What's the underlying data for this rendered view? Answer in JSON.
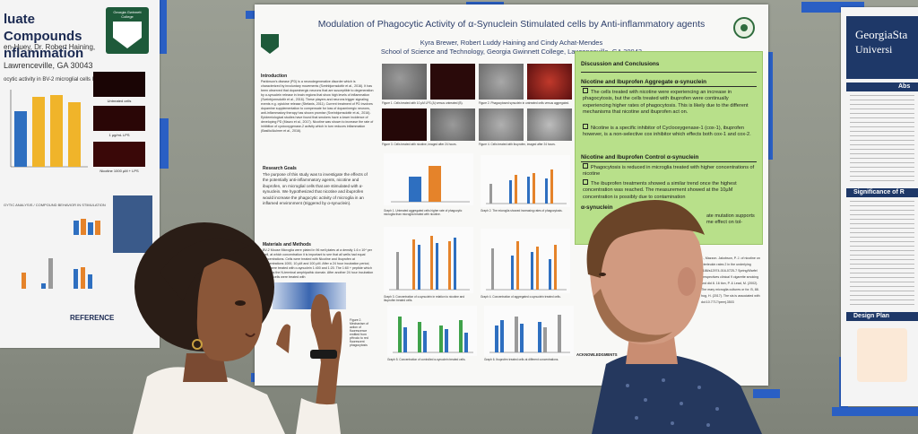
{
  "left_poster": {
    "title": "luate Compounds nflammation",
    "authors": "en-Huey, Dr. Robert Haining,",
    "location": "Lawrenceville, GA 30043",
    "crest_text": "Georgia Gwinnett College",
    "chart_title": "ocytic activity in BV-2 microglial cells line",
    "micro_labels": [
      "Untreated cells",
      "1 µg/mL LPS",
      "Nicotine 1000 µM + LPS"
    ],
    "bottom_title": "GYTIC ANALYSIS / COMPOUND BEHAVIOR IN STIMULATION",
    "references_heading": "REFERENCE"
  },
  "main_poster": {
    "title": "Modulation of Phagocytic Activity of α-Synuclein Stimulated cells by Anti-inflammatory agents",
    "authors": "Kyra Brewer, Robert Luddy Haining and Cindy Achat-Mendes",
    "school": "School of Science and Technology, Georgia Gwinnett College, Lawrenceville, GA 30043",
    "intro_heading": "Introduction",
    "intro_text": "Parkinson's disease (PD) is a neurodegenerative disorder which is characterized by involuntary movements (Sveinbjornsdottir et al., 2016). It has been observed that dopaminergic neurons that are susceptible to degeneration by α-synuclein release in brain regions that show high levels of inflammation (Sveinbjornsdottir et al., 2016). These players and neurons trigger signaling events e.g. cytokine release (Stefanis, 2011). Current treatment of PD involves dopamine supplementation to compensate for loss of dopaminergic neurons, anti-inflammatory therapy has shown promise (Sveinbjornsdottir et al., 2016). Epidemiological studies have found that smokers have a lower incidence of developing PD (Mauro et al., 2017). Nicotine was shown to increase the rate of inhibition of cyclooxygenase-2 activity which in turn reduces inflammation (Basilio/Aulmer et al., 2016).",
    "goals_heading": "Research Goals",
    "goals_text": "The purpose of this study was to investigate the effects of the potentially anti-inflammatory agents, nicotine and ibuprofen, on microglial cells that are stimulated with α-synuclein. We hypothesized that nicotine and ibuprofen would increase the phagocytic activity of microglia in an inflamed environment (triggered by α-synuclein).",
    "methods_heading": "Materials and Methods",
    "methods_text": "BV-2 Mouse Microglia were plated in 96 well plates at a density 1.6 x 10⁴ per well, at which concentration it is important to see that all wells had equal concentrations. Cells were treated with Nicotine and Ibuprofen at concentrations 1000, 10 µM and 100 µM. After a 24 hour incubation period, cells were treated with α-synuclein 1:400 and 1:20. The 1:60 + peptide which only has the N-terminal amphipathic domain. After another 24 hour incubation period, cells were treated with",
    "figure_captions": [
      "Figure 1. Cells treated with 10 µM LPS (A) versus untreated (B).",
      "Figure 2. Phagocytosed synuclein in untreated cells versus aggregated.",
      "Figure 3. Cells treated with nicotine, imaged after 24 hours.",
      "Figure 4. Cells treated with ibuprofen, imaged after 24 hours.",
      "Graph 1. Untreated aggregated cells higher rate of phagocytic microglia than microglia treated with nicotine.",
      "Graph 2. The microglia showed increasing rates of phagocytosis.",
      "Graph 3. Concentration of α-synuclein in relation to nicotine and ibuprofen treated cells.",
      "Graph 4. Concentration of aggregated α-synuclein treated cells.",
      "Graph 5. Concentration of controlled α-synuclein treated cells.",
      "Graph 6. Ibuprofen treated cells at different concentrations."
    ],
    "side_caption": "Figure 2. Mechanism of action of fluorescence emitted from pHrodo to red fluorescent phagocytosis",
    "discussion": {
      "heading": "Discussion and Conclusions",
      "sub1": "Nicotine and Ibuprofen Aggregate α-synuclein",
      "bullets1": [
        "The cells treated with nicotine were experiencing an increase in phagocytosis, but the cells treated with ibuprofen were continually experiencing higher rates of phagocytosis. This is likely due to the different mechanisms that nicotine and ibuprofen act on.",
        "Nicotine is a specific inhibitor of Cyclooxygenase-1 (cox-1), ibuprofen however, is a non-selective cox inhibitor which effects both cox-1 and cox-2."
      ],
      "sub2": "Nicotine and Ibuprofen Control α-synuclein",
      "bullets2": [
        "Phagocytosis is reduced in microglia treated with higher concentrations of nicotine",
        "The ibuprofen treatments showed a similar trend once the highest concentration was reached. The measurement showed at the 10µM concentration is possibly due to contamination"
      ],
      "sub3": "α-synuclein",
      "overflow_text": "ate mutation supports me effect on tol-"
    },
    "references_text": "J., Mazzon. Jakobson, P. J. of nicotine on interleukin rates 2 in the underlying 1186/s12974-016-0725-7 Spring/Warfel perspectives clinical 9 cigarette smoking and did 8. 16 tion, P. & Lead, M. (2002). The mary microglia cultures or for. B, 88. hog, H. (2017). The sis is associated with doi:10.7717/peerj.3503",
    "acknowledgments": "ACKNOWLEDGMENTS"
  },
  "right_poster": {
    "logo_line1": "GeorgiaSta",
    "logo_line2": "Universi",
    "bar1": "Abs",
    "bar2": "Significance of R",
    "bar3": "Design Plan"
  },
  "colors": {
    "tape": "#2a5fc4",
    "poster_header_blue": "#1e3868",
    "discussion_green": "#b8e08a",
    "bar_blue": "#2e6fc0",
    "bar_orange": "#e5832a",
    "bar_gray": "#9a9a9a",
    "bar_yellow": "#f0b42a",
    "bar_green": "#3fa24a"
  }
}
